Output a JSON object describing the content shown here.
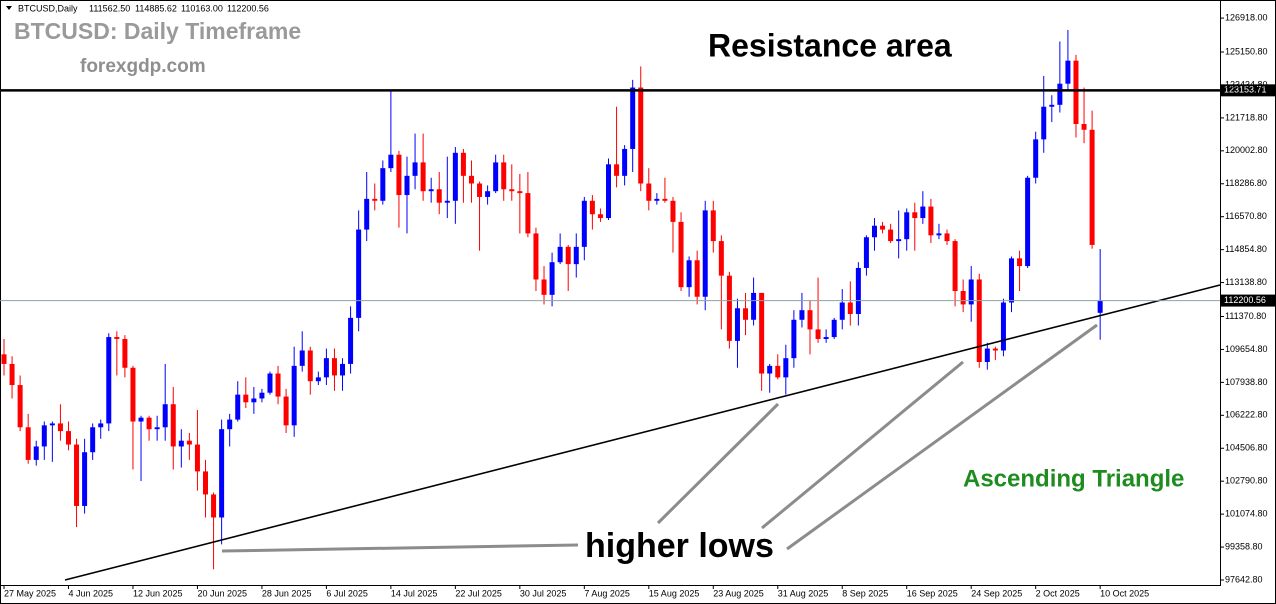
{
  "chart_data": {
    "type": "candlestick",
    "header": {
      "symbol": "BTCUSD,Daily",
      "ohlc": [
        "111562.50",
        "114885.62",
        "110163.00",
        "112200.56"
      ]
    },
    "title": "BTCUSD: Daily Timeframe",
    "subtitle": "forexgdp.com",
    "annotations": {
      "resistance": "Resistance area",
      "pattern": "Ascending Triangle",
      "lows": "higher lows"
    },
    "up_color": "#0000ff",
    "down_color": "#ff0000",
    "categories": [
      "27 May 2025",
      null,
      null,
      null,
      null,
      null,
      null,
      null,
      "4 Jun 2025",
      null,
      null,
      null,
      null,
      null,
      null,
      null,
      "12 Jun 2025",
      null,
      null,
      null,
      null,
      null,
      null,
      null,
      "20 Jun 2025",
      null,
      null,
      null,
      null,
      null,
      null,
      null,
      "28 Jun 2025",
      null,
      null,
      null,
      null,
      null,
      null,
      null,
      "6 Jul 2025",
      null,
      null,
      null,
      null,
      null,
      null,
      null,
      "14 Jul 2025",
      null,
      null,
      null,
      null,
      null,
      null,
      null,
      "22 Jul 2025",
      null,
      null,
      null,
      null,
      null,
      null,
      null,
      "30 Jul 2025",
      null,
      null,
      null,
      null,
      null,
      null,
      null,
      "7 Aug 2025",
      null,
      null,
      null,
      null,
      null,
      null,
      null,
      "15 Aug 2025",
      null,
      null,
      null,
      null,
      null,
      null,
      null,
      "23 Aug 2025",
      null,
      null,
      null,
      null,
      null,
      null,
      null,
      "31 Aug 2025",
      null,
      null,
      null,
      null,
      null,
      null,
      null,
      "8 Sep 2025",
      null,
      null,
      null,
      null,
      null,
      null,
      null,
      "16 Sep 2025",
      null,
      null,
      null,
      null,
      null,
      null,
      null,
      "24 Sep 2025",
      null,
      null,
      null,
      null,
      null,
      null,
      null,
      "2 Oct 2025",
      null,
      null,
      null,
      null,
      null,
      null,
      null,
      "10 Oct 2025"
    ],
    "open": [
      109400,
      108900,
      107800,
      105600,
      103900,
      104600,
      105700,
      105800,
      105400,
      104700,
      101500,
      104300,
      105600,
      105800,
      110300,
      110200,
      108700,
      105900,
      106100,
      105500,
      105600,
      106800,
      104600,
      104900,
      104700,
      103300,
      102100,
      100900,
      105500,
      106000,
      107300,
      106900,
      107100,
      107400,
      108400,
      107200,
      105700,
      108800,
      109600,
      108000,
      108200,
      109200,
      108300,
      108900,
      111300,
      115900,
      117500,
      117400,
      119100,
      119800,
      117700,
      118700,
      119400,
      117900,
      118000,
      117300,
      117400,
      119900,
      118700,
      118300,
      117600,
      117900,
      119400,
      118000,
      117900,
      117800,
      115700,
      113300,
      112500,
      114200,
      115000,
      114100,
      115000,
      117400,
      116700,
      116500,
      119300,
      118700,
      120100,
      123300,
      118300,
      117400,
      117500,
      117400,
      116300,
      112900,
      114300,
      112400,
      116900,
      115300,
      113500,
      110100,
      111800,
      111200,
      112600,
      108400,
      108800,
      108200,
      109200,
      111200,
      111700,
      110700,
      110200,
      110300,
      111200,
      112100,
      111500,
      113900,
      115500,
      116100,
      115900,
      115300,
      115400,
      116800,
      116500,
      117100,
      115600,
      115700,
      115300,
      112700,
      112000,
      113300,
      109000,
      109700,
      109600,
      112100,
      114400,
      114000,
      118600,
      120600,
      122300,
      122400,
      123500,
      124700,
      121400,
      121100,
      111562.5
    ],
    "high": [
      110200,
      109300,
      108300,
      106300,
      104900,
      105900,
      105900,
      106800,
      105900,
      105000,
      105000,
      105800,
      106000,
      110500,
      110600,
      110400,
      108800,
      106200,
      106200,
      106200,
      108900,
      107700,
      105500,
      105300,
      106500,
      103900,
      102200,
      106000,
      106300,
      108000,
      108200,
      107700,
      107600,
      108500,
      108800,
      107600,
      109800,
      110600,
      109800,
      108500,
      109700,
      109700,
      109200,
      111900,
      116900,
      118900,
      118300,
      119500,
      123200,
      120000,
      119700,
      120900,
      120900,
      118600,
      118900,
      119700,
      120200,
      120100,
      119500,
      118400,
      118200,
      119800,
      119800,
      119300,
      118800,
      118900,
      116000,
      114000,
      114700,
      115700,
      115100,
      115700,
      117600,
      117700,
      117000,
      119600,
      122300,
      120300,
      123700,
      124400,
      119100,
      117800,
      118600,
      117600,
      116800,
      114500,
      114800,
      117400,
      117400,
      115600,
      113700,
      112300,
      112600,
      113400,
      112600,
      108900,
      109400,
      109900,
      111700,
      112600,
      112200,
      113400,
      110700,
      111300,
      112800,
      113200,
      114200,
      115600,
      116500,
      116300,
      116200,
      116900,
      117000,
      117300,
      117900,
      117500,
      116200,
      115900,
      115400,
      113300,
      114000,
      113600,
      110000,
      109800,
      112300,
      114500,
      114800,
      118700,
      121000,
      123900,
      122900,
      125700,
      126300,
      125000,
      123300,
      122100,
      114885.62
    ],
    "low": [
      108300,
      107100,
      105400,
      103700,
      103600,
      103900,
      103800,
      104900,
      104400,
      100400,
      101100,
      103900,
      105000,
      105400,
      108300,
      108200,
      103400,
      102800,
      104900,
      104900,
      104900,
      103400,
      103500,
      103900,
      102300,
      100900,
      98200,
      99500,
      104600,
      105900,
      106600,
      106300,
      106900,
      107300,
      106800,
      105300,
      105100,
      108500,
      107300,
      107800,
      107800,
      107500,
      107500,
      108400,
      110600,
      115300,
      116900,
      117200,
      118900,
      116000,
      115700,
      118000,
      117400,
      117300,
      116700,
      116500,
      116200,
      117300,
      117300,
      114800,
      117200,
      117800,
      117400,
      117400,
      115700,
      115500,
      112700,
      112000,
      111900,
      114100,
      112700,
      113400,
      114300,
      115900,
      116300,
      116400,
      118100,
      118200,
      118900,
      117900,
      116900,
      117200,
      117300,
      114700,
      112700,
      112400,
      112000,
      111700,
      114700,
      110700,
      109700,
      108700,
      110400,
      110900,
      107500,
      107400,
      108100,
      107300,
      108700,
      110800,
      109400,
      110000,
      110000,
      110200,
      110700,
      110900,
      110900,
      113500,
      114800,
      115700,
      115200,
      114400,
      114800,
      114800,
      116200,
      115200,
      115400,
      115100,
      111900,
      111600,
      111100,
      108700,
      108600,
      109100,
      109300,
      111600,
      112700,
      113900,
      118300,
      119900,
      121500,
      122000,
      123100,
      120700,
      120400,
      114900,
      110163
    ],
    "close": [
      108900,
      107800,
      105600,
      103900,
      104600,
      105700,
      105800,
      105400,
      104700,
      101500,
      104300,
      105600,
      105800,
      110300,
      110200,
      108700,
      105900,
      106100,
      105500,
      105600,
      106800,
      104600,
      104900,
      104700,
      103300,
      102100,
      100900,
      105500,
      106000,
      107300,
      106900,
      107100,
      107400,
      108400,
      107200,
      105700,
      108800,
      109600,
      108000,
      108200,
      109200,
      108300,
      108900,
      111300,
      115900,
      117500,
      117400,
      119100,
      119800,
      117700,
      118700,
      119400,
      117900,
      118000,
      117300,
      117400,
      119900,
      118700,
      118300,
      117600,
      117900,
      119400,
      118000,
      117900,
      117800,
      115700,
      113300,
      112500,
      114200,
      115000,
      114100,
      115000,
      117400,
      116700,
      116500,
      119300,
      118700,
      120100,
      123300,
      118300,
      117400,
      117500,
      117400,
      116300,
      112900,
      114300,
      112400,
      116900,
      115300,
      113500,
      110100,
      111800,
      111200,
      112600,
      108400,
      108800,
      108200,
      109200,
      111200,
      111700,
      110700,
      110200,
      110300,
      111200,
      112100,
      111500,
      113900,
      115500,
      116100,
      115900,
      115300,
      115400,
      116800,
      116500,
      117100,
      115600,
      115700,
      115300,
      112700,
      112000,
      113300,
      109000,
      109700,
      109600,
      112100,
      114400,
      114000,
      118600,
      120600,
      122300,
      122400,
      123500,
      124700,
      121400,
      121100,
      115100,
      112200.56
    ],
    "ylim": [
      97382,
      127861
    ],
    "yticks": [
      {
        "value": 97642.8,
        "label": "97642.80"
      },
      {
        "value": 99358.8,
        "label": "99358.80"
      },
      {
        "value": 101074.8,
        "label": "101074.80"
      },
      {
        "value": 102790.8,
        "label": "102790.80"
      },
      {
        "value": 104506.8,
        "label": "104506.80"
      },
      {
        "value": 106222.8,
        "label": "106222.80"
      },
      {
        "value": 107938.8,
        "label": "107938.80"
      },
      {
        "value": 109654.8,
        "label": "109654.80"
      },
      {
        "value": 111370.8,
        "label": "111370.80"
      },
      {
        "value": 113138.8,
        "label": "113138.80"
      },
      {
        "value": 114854.8,
        "label": "114854.80"
      },
      {
        "value": 116570.8,
        "label": "116570.80"
      },
      {
        "value": 118286.8,
        "label": "118286.80"
      },
      {
        "value": 120002.8,
        "label": "120002.80"
      },
      {
        "value": 121718.8,
        "label": "121718.80"
      },
      {
        "value": 123434.8,
        "label": "123434.80"
      },
      {
        "value": 125150.8,
        "label": "125150.80"
      },
      {
        "value": 126918,
        "label": "126918.00"
      }
    ],
    "resistance": {
      "value": 123153.71,
      "label": "123153.71"
    },
    "current_price": {
      "value": 112200.56,
      "label": "112200.56"
    }
  }
}
